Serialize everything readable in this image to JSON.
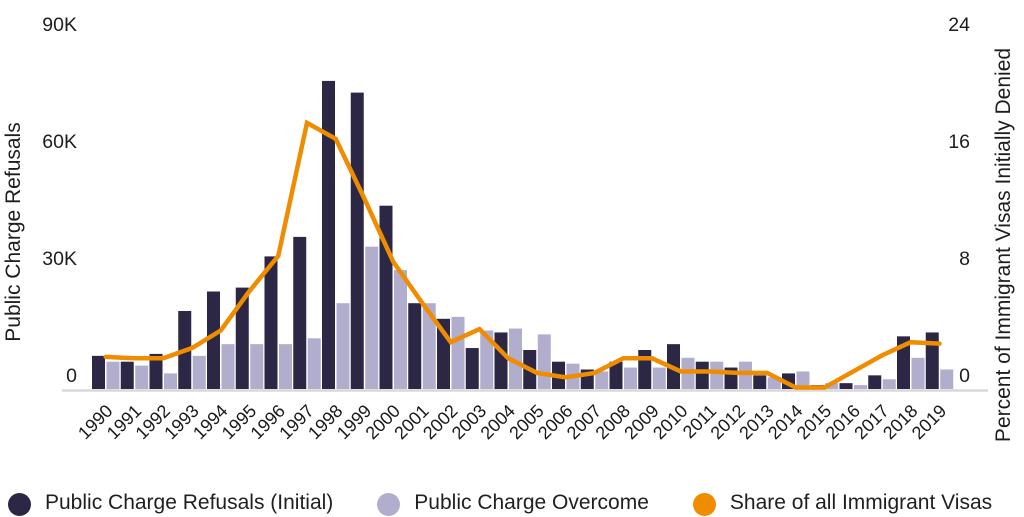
{
  "chart_data": {
    "type": "bar",
    "subtype": "grouped-bars-with-line-dual-axis",
    "years": [
      "1990",
      "1991",
      "1992",
      "1993",
      "1994",
      "1995",
      "1996",
      "1997",
      "1998",
      "1999",
      "2000",
      "2001",
      "2002",
      "2003",
      "2004",
      "2005",
      "2006",
      "2007",
      "2008",
      "2009",
      "2010",
      "2011",
      "2012",
      "2013",
      "2014",
      "2015",
      "2016",
      "2017",
      "2018",
      "2019"
    ],
    "series": [
      {
        "name": "Public Charge Refusals (Initial)",
        "type": "bar",
        "axis": "left",
        "color": "#2b2745",
        "values_thousands": [
          8.5,
          7,
          9,
          20,
          25,
          26,
          34,
          39,
          79,
          76,
          47,
          22,
          18,
          10.5,
          14.5,
          10,
          7,
          5,
          7,
          10,
          11.5,
          7,
          5.5,
          3.5,
          4,
          1,
          1.5,
          3.5,
          13.5,
          14.5
        ]
      },
      {
        "name": "Public Charge Overcome",
        "type": "bar",
        "axis": "left",
        "color": "#b1adcd",
        "values_thousands": [
          7,
          6,
          4,
          8.5,
          11.5,
          11.5,
          11.5,
          13,
          22,
          36.5,
          30.5,
          22,
          18.5,
          15,
          15.5,
          14,
          6.5,
          4.5,
          5.5,
          5.5,
          8,
          7,
          7,
          3,
          4.5,
          1.5,
          1,
          2.5,
          8,
          5
        ]
      },
      {
        "name": "Share of all Immigrant Visas",
        "type": "line",
        "axis": "right",
        "color": "#f08c00",
        "values_percent": [
          2.2,
          2.1,
          2.1,
          2.8,
          4.0,
          6.7,
          9.1,
          18.2,
          17.1,
          13.0,
          8.7,
          5.9,
          3.2,
          4.1,
          2.1,
          1.1,
          0.8,
          1.1,
          2.1,
          2.1,
          1.2,
          1.2,
          1.1,
          1.1,
          0.1,
          0.1,
          1.2,
          2.3,
          3.2,
          3.1
        ]
      }
    ],
    "left_axis": {
      "title": "Public Charge Refusals",
      "max_thousands": 90,
      "ticks": [
        {
          "label": "0",
          "value": 0
        },
        {
          "label": "30K",
          "value": 30
        },
        {
          "label": "60K",
          "value": 60
        },
        {
          "label": "90K",
          "value": 90
        }
      ]
    },
    "right_axis": {
      "title": "Percent of Immigrant Visas Initially Denied",
      "max_percent": 24,
      "ticks": [
        {
          "label": "0",
          "value": 0
        },
        {
          "label": "8",
          "value": 8
        },
        {
          "label": "16",
          "value": 16
        },
        {
          "label": "24",
          "value": 24
        }
      ]
    },
    "grid": false,
    "legend_position": "bottom",
    "colors": {
      "bar_primary": "#2b2745",
      "bar_secondary": "#b1adcd",
      "line": "#f08c00",
      "baseline": "#d8d8d8",
      "text": "#1d1d1d"
    }
  }
}
